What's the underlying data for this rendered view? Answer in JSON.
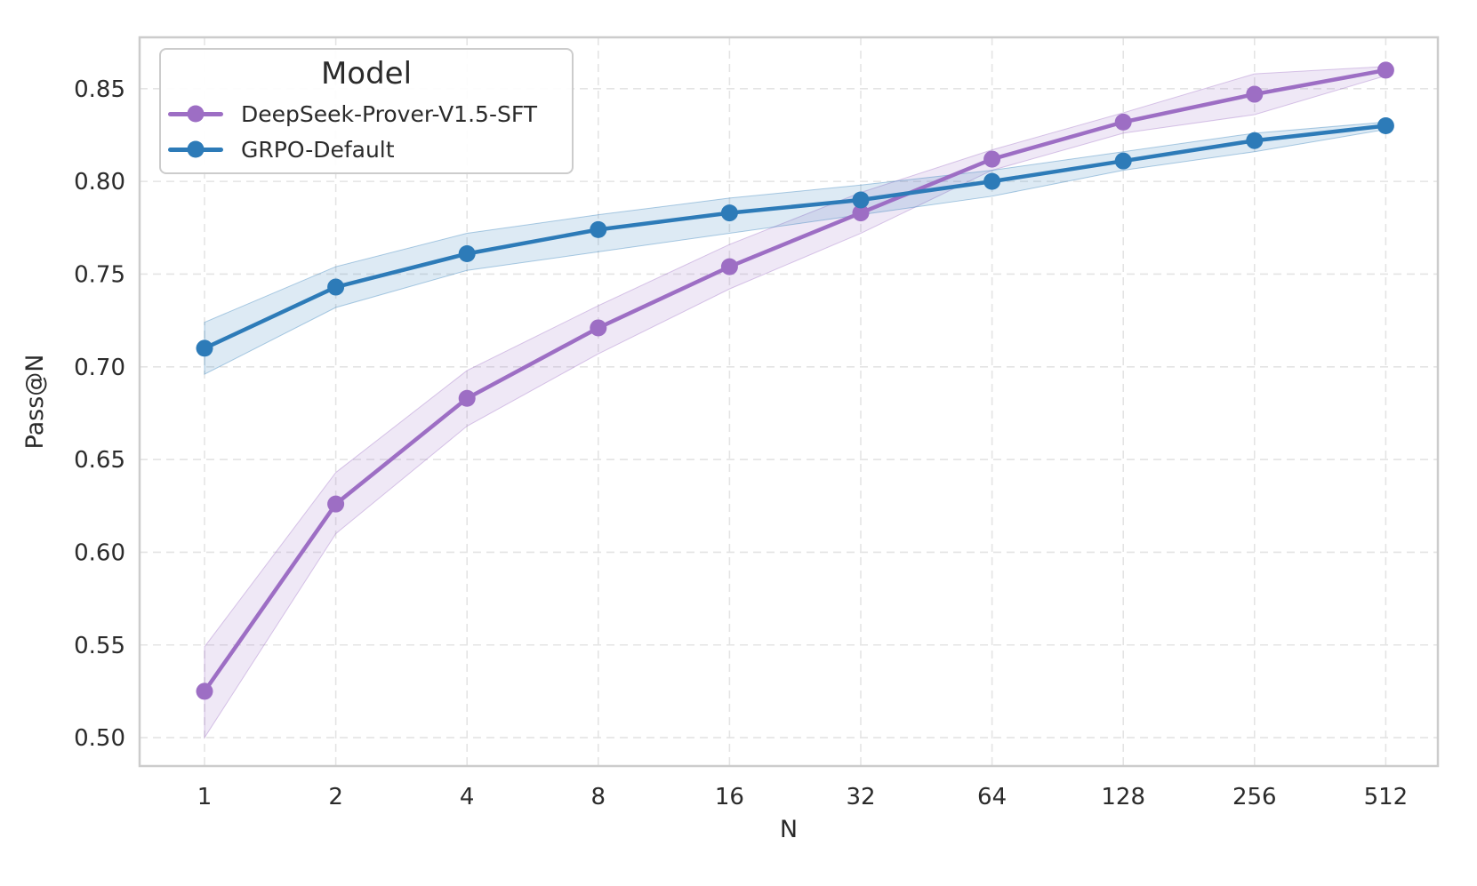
{
  "figure": {
    "background_color": "#ffffff",
    "plot_background_color": "#ffffff",
    "grid_color": "#e4e4e4",
    "spine_color": "#cccccc",
    "text_color": "#2b2b2b"
  },
  "legend": {
    "title": "Model",
    "position": "upper left",
    "items": [
      {
        "label": "DeepSeek-Prover-V1.5-SFT",
        "color": "#9d6ec4"
      },
      {
        "label": "GRPO-Default",
        "color": "#2d7bb8"
      }
    ]
  },
  "chart_data": {
    "type": "line",
    "title": "",
    "xlabel": "N",
    "ylabel": "Pass@N",
    "x_scale": "log2",
    "grid": "dashed",
    "legend_position": "upper left",
    "x": [
      1,
      2,
      4,
      8,
      16,
      32,
      64,
      128,
      256,
      512
    ],
    "x_tick_labels": [
      "1",
      "2",
      "4",
      "8",
      "16",
      "32",
      "64",
      "128",
      "256",
      "512"
    ],
    "y_ticks": [
      0.5,
      0.55,
      0.6,
      0.65,
      0.7,
      0.75,
      0.8,
      0.85
    ],
    "y_tick_labels": [
      "0.50",
      "0.55",
      "0.60",
      "0.65",
      "0.70",
      "0.75",
      "0.80",
      "0.85"
    ],
    "ylim": [
      0.4847,
      0.8777
    ],
    "series": [
      {
        "name": "DeepSeek-Prover-V1.5-SFT",
        "color": "#9d6ec4",
        "values": [
          0.525,
          0.626,
          0.683,
          0.721,
          0.754,
          0.783,
          0.812,
          0.832,
          0.847,
          0.86
        ],
        "ci_lower": [
          0.5,
          0.61,
          0.668,
          0.707,
          0.742,
          0.772,
          0.806,
          0.826,
          0.836,
          0.857
        ],
        "ci_upper": [
          0.549,
          0.643,
          0.698,
          0.733,
          0.766,
          0.794,
          0.817,
          0.837,
          0.858,
          0.862
        ]
      },
      {
        "name": "GRPO-Default",
        "color": "#2d7bb8",
        "values": [
          0.71,
          0.743,
          0.761,
          0.774,
          0.783,
          0.79,
          0.8,
          0.811,
          0.822,
          0.83
        ],
        "ci_lower": [
          0.696,
          0.732,
          0.752,
          0.762,
          0.772,
          0.782,
          0.792,
          0.806,
          0.816,
          0.828
        ],
        "ci_upper": [
          0.724,
          0.754,
          0.772,
          0.782,
          0.791,
          0.798,
          0.806,
          0.816,
          0.826,
          0.832
        ]
      }
    ]
  }
}
